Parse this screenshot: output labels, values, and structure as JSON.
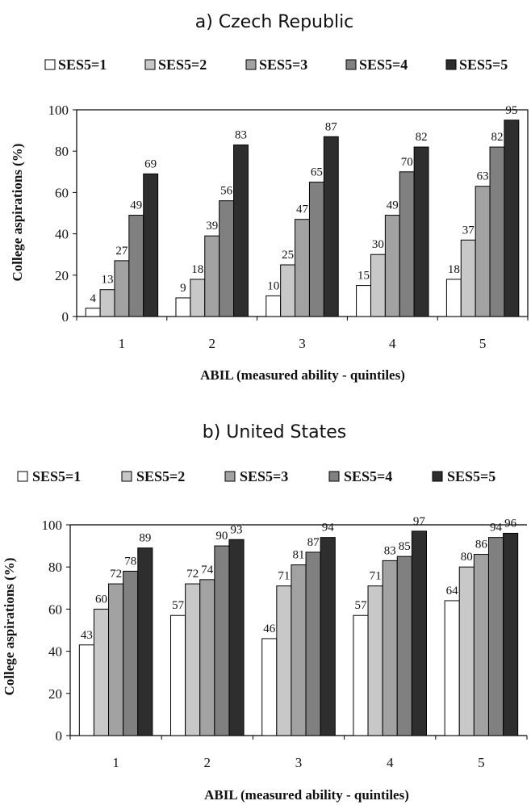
{
  "chart_data": [
    {
      "type": "bar",
      "title": "a) Czech Republic",
      "xlabel": "ABIL (measured ability - quintiles)",
      "ylabel": "College aspirations  (%)",
      "ylim": [
        0,
        100
      ],
      "yticks": [
        "0",
        "20",
        "40",
        "60",
        "80",
        "100"
      ],
      "categories": [
        "1",
        "2",
        "3",
        "4",
        "5"
      ],
      "legend_position": "top",
      "series": [
        {
          "name": "SES5=1",
          "color": "#ffffff",
          "values": [
            4,
            9,
            10,
            15,
            18
          ]
        },
        {
          "name": "SES5=2",
          "color": "#c8c8c8",
          "values": [
            13,
            18,
            25,
            30,
            37
          ]
        },
        {
          "name": "SES5=3",
          "color": "#a2a2a2",
          "values": [
            27,
            39,
            47,
            49,
            63
          ]
        },
        {
          "name": "SES5=4",
          "color": "#808080",
          "values": [
            49,
            56,
            65,
            70,
            82
          ]
        },
        {
          "name": "SES5=5",
          "color": "#2e2e2e",
          "values": [
            69,
            83,
            87,
            82,
            95
          ]
        }
      ]
    },
    {
      "type": "bar",
      "title": "b) United States",
      "xlabel": "ABIL (measured ability - quintiles)",
      "ylabel": "College aspirations (%)",
      "ylim": [
        0,
        100
      ],
      "yticks": [
        "0",
        "20",
        "40",
        "60",
        "80",
        "100"
      ],
      "categories": [
        "1",
        "2",
        "3",
        "4",
        "5"
      ],
      "legend_position": "top",
      "series": [
        {
          "name": "SES5=1",
          "color": "#ffffff",
          "values": [
            43,
            57,
            46,
            57,
            64
          ]
        },
        {
          "name": "SES5=2",
          "color": "#c8c8c8",
          "values": [
            60,
            72,
            71,
            71,
            80
          ]
        },
        {
          "name": "SES5=3",
          "color": "#a2a2a2",
          "values": [
            72,
            74,
            81,
            83,
            86
          ]
        },
        {
          "name": "SES5=4",
          "color": "#808080",
          "values": [
            78,
            90,
            87,
            85,
            94
          ]
        },
        {
          "name": "SES5=5",
          "color": "#2e2e2e",
          "values": [
            89,
            93,
            94,
            97,
            96
          ]
        }
      ]
    }
  ]
}
